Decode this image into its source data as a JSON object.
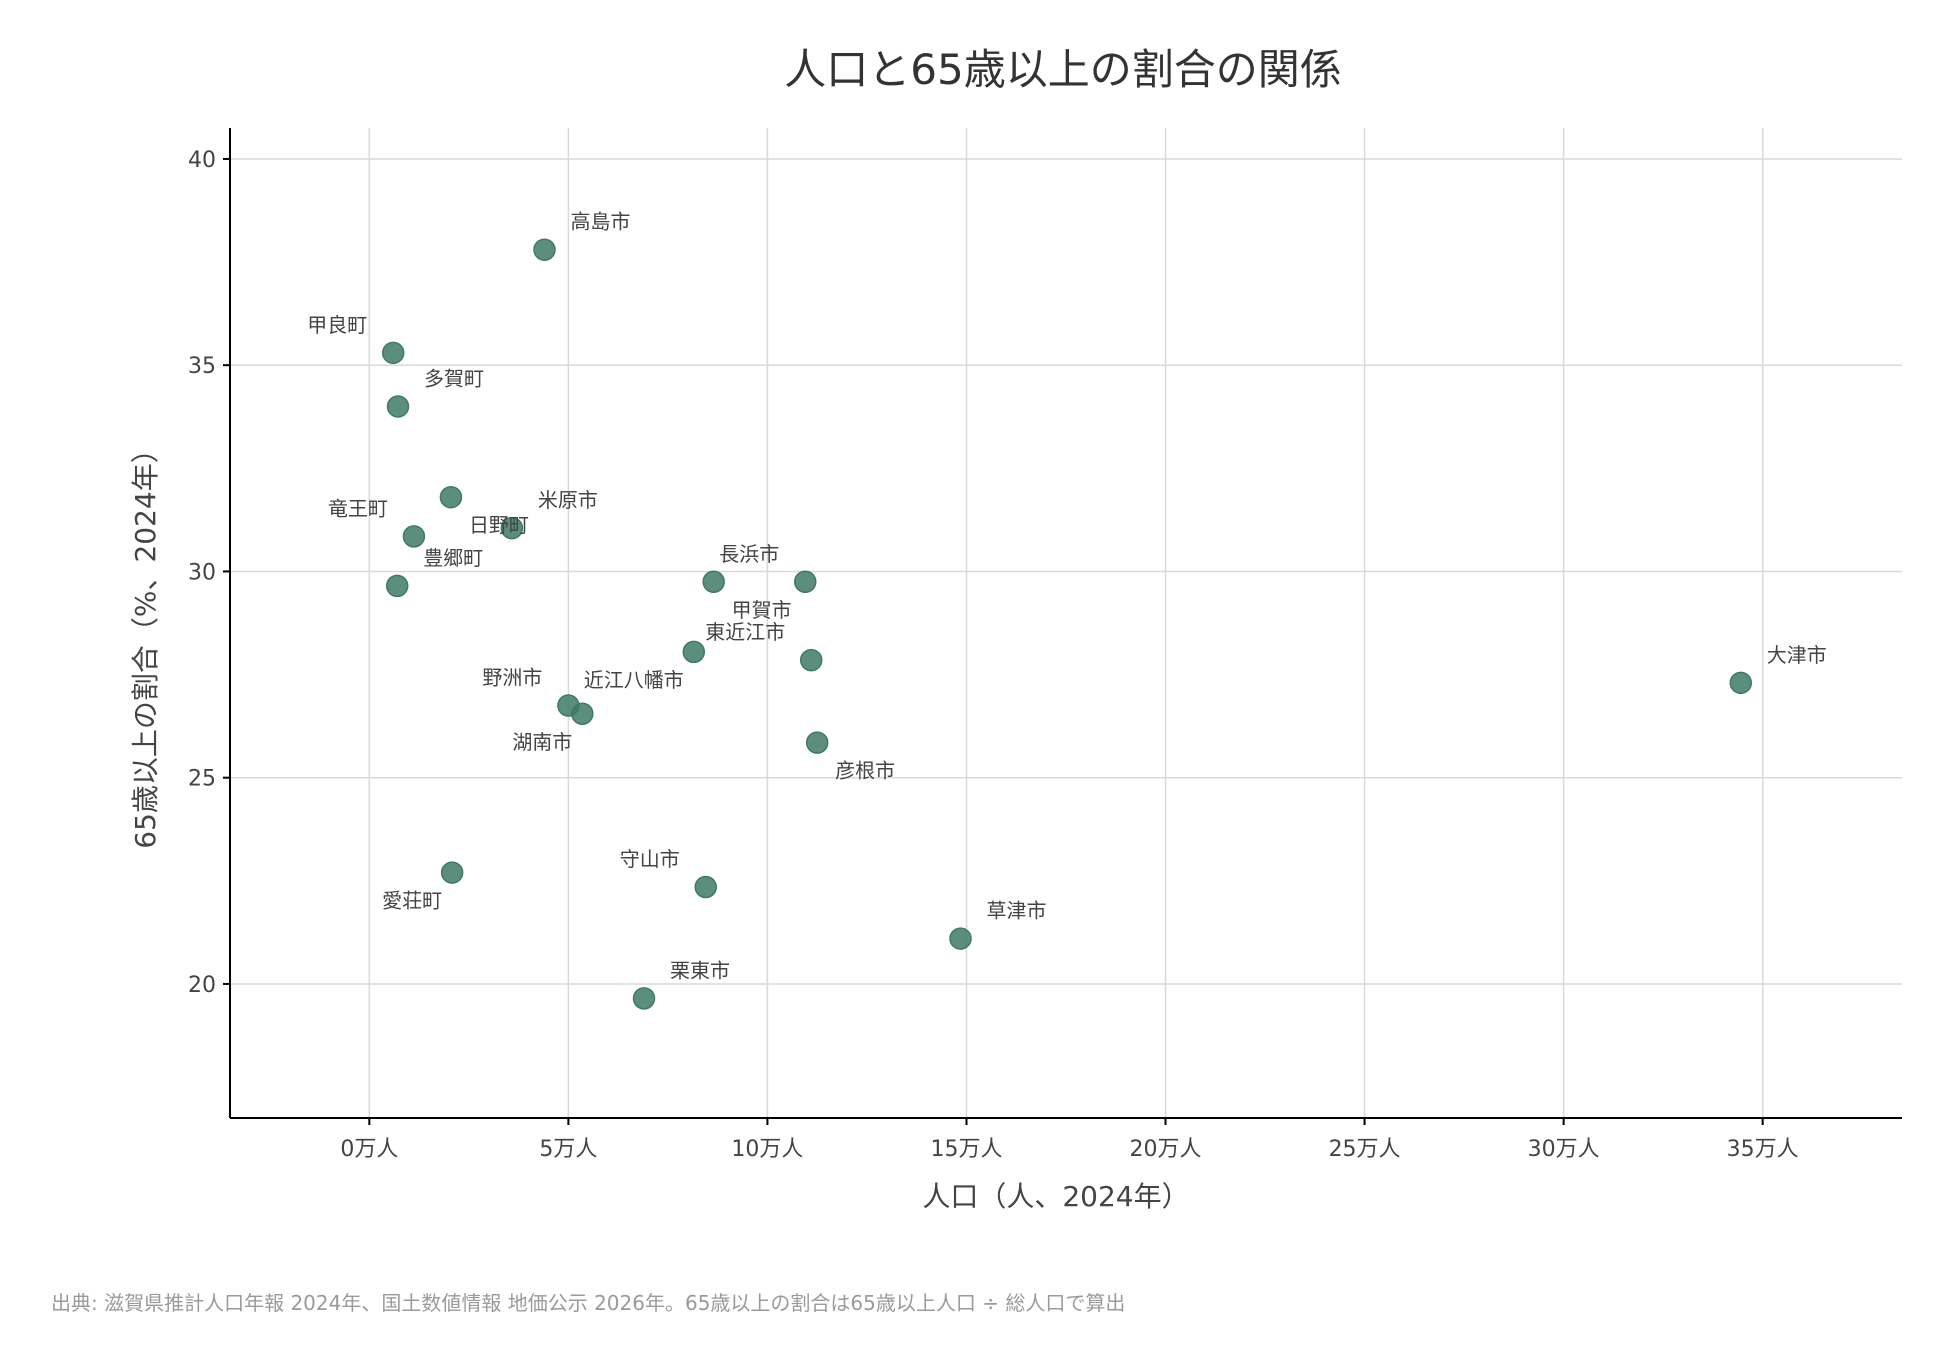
{
  "chart_data": {
    "type": "scatter",
    "title": "人口と65歳以上の割合の関係",
    "xlabel": "人口（人、2024年）",
    "ylabel": "65歳以上の割合（%、2024年）",
    "xlim": [
      -35000,
      385000
    ],
    "ylim": [
      16.75,
      40.75
    ],
    "x_ticks": [
      {
        "value": 0,
        "label": "0万人"
      },
      {
        "value": 50000,
        "label": "5万人"
      },
      {
        "value": 100000,
        "label": "10万人"
      },
      {
        "value": 150000,
        "label": "15万人"
      },
      {
        "value": 200000,
        "label": "20万人"
      },
      {
        "value": 250000,
        "label": "25万人"
      },
      {
        "value": 300000,
        "label": "30万人"
      },
      {
        "value": 350000,
        "label": "35万人"
      }
    ],
    "y_ticks": [
      {
        "value": 20,
        "label": "20"
      },
      {
        "value": 25,
        "label": "25"
      },
      {
        "value": 30,
        "label": "30"
      },
      {
        "value": 35,
        "label": "35"
      },
      {
        "value": 40,
        "label": "40"
      }
    ],
    "grid": true,
    "point_color": "#3f7a66",
    "points": [
      {
        "name": "高島市",
        "x": 44000,
        "y": 37.8,
        "label_pos": "upper-right"
      },
      {
        "name": "甲良町",
        "x": 6000,
        "y": 35.3,
        "label_pos": "upper-left"
      },
      {
        "name": "多賀町",
        "x": 7200,
        "y": 34.0,
        "label_pos": "upper-right"
      },
      {
        "name": "米原市",
        "x": 35800,
        "y": 31.05,
        "label_pos": "upper-right"
      },
      {
        "name": "日野町",
        "x": 20500,
        "y": 31.8,
        "label_pos": "lower-right"
      },
      {
        "name": "竜王町",
        "x": 11200,
        "y": 30.85,
        "label_pos": "upper-left"
      },
      {
        "name": "豊郷町",
        "x": 7000,
        "y": 29.65,
        "label_pos": "upper-right"
      },
      {
        "name": "長浜市",
        "x": 109500,
        "y": 29.75,
        "label_pos": "upper-left"
      },
      {
        "name": "甲賀市",
        "x": 86500,
        "y": 29.75,
        "label_pos": "lower-right"
      },
      {
        "name": "東近江市",
        "x": 111000,
        "y": 27.85,
        "label_pos": "upper-left"
      },
      {
        "name": "近江八幡市",
        "x": 81500,
        "y": 28.05,
        "label_pos": "lower-left"
      },
      {
        "name": "野洲市",
        "x": 50000,
        "y": 26.75,
        "label_pos": "upper-left"
      },
      {
        "name": "湖南市",
        "x": 53500,
        "y": 26.55,
        "label_pos": "lower-left"
      },
      {
        "name": "彦根市",
        "x": 112500,
        "y": 25.85,
        "label_pos": "lower-right"
      },
      {
        "name": "大津市",
        "x": 344500,
        "y": 27.3,
        "label_pos": "upper-right"
      },
      {
        "name": "守山市",
        "x": 84500,
        "y": 22.35,
        "label_pos": "upper-left"
      },
      {
        "name": "愛荘町",
        "x": 20800,
        "y": 22.7,
        "label_pos": "lower-left"
      },
      {
        "name": "草津市",
        "x": 148500,
        "y": 21.1,
        "label_pos": "upper-right"
      },
      {
        "name": "栗東市",
        "x": 69000,
        "y": 19.65,
        "label_pos": "upper-right"
      }
    ]
  },
  "source_note": "出典: 滋賀県推計人口年報 2024年、国土数値情報 地価公示 2026年。65歳以上の割合は65歳以上人口 ÷ 総人口で算出"
}
